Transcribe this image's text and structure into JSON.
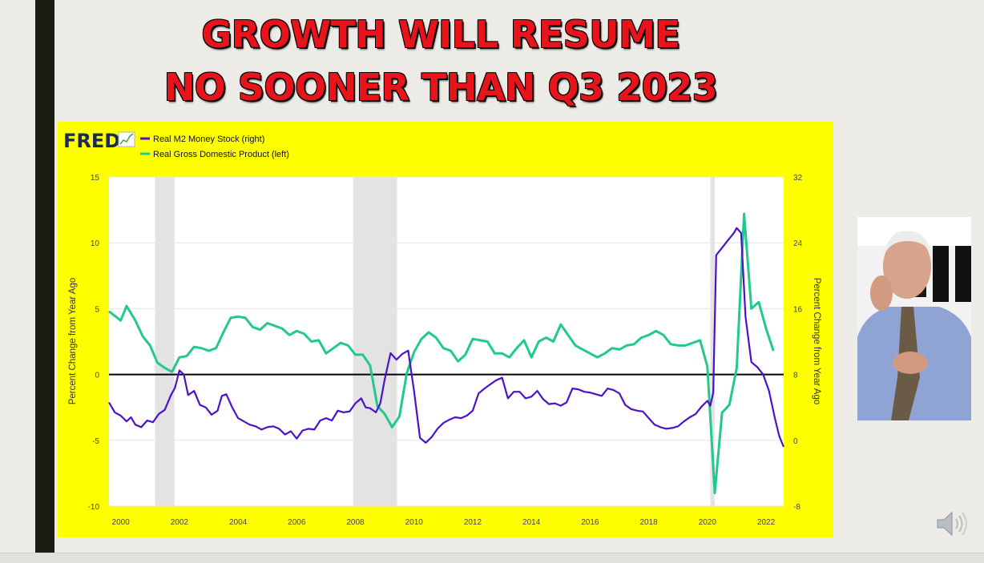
{
  "slide": {
    "title_line1": "GROWTH WILL RESUME",
    "title_line2": "NO SOONER THAN Q3 2023"
  },
  "chart_data": {
    "type": "line",
    "source_logo": "FRED",
    "colors": {
      "m2": "#4b12c9",
      "gdp": "#22c98a",
      "panel_bg": "#ffff00",
      "recession_shade": "#e3e3e3"
    },
    "left_axis": {
      "label": "Percent Change from Year Ago",
      "ylim": [
        -10,
        15
      ],
      "ticks": [
        "15",
        "10",
        "5",
        "0",
        "-5",
        "-10"
      ]
    },
    "right_axis": {
      "label": "Percent Change from Year Ago",
      "ylim": [
        -8,
        32
      ],
      "ticks": [
        "32",
        "24",
        "16",
        "8",
        "0",
        "-8"
      ]
    },
    "x_ticks": [
      "2000",
      "2002",
      "2004",
      "2006",
      "2008",
      "2010",
      "2012",
      "2014",
      "2016",
      "2018",
      "2020",
      "2022"
    ],
    "xlim": [
      1999.6,
      2022.6
    ],
    "recessions": [
      [
        2001.17,
        2001.83
      ],
      [
        2007.92,
        2009.42
      ],
      [
        2020.1,
        2020.25
      ]
    ],
    "legend": [
      "Real M2 Money Stock (right)",
      "Real Gross Domestic Product (left)"
    ],
    "series": [
      {
        "name": "Real M2 Money Stock (right)",
        "axis": "right",
        "points": [
          [
            1999.6,
            4.6
          ],
          [
            1999.8,
            3.4
          ],
          [
            2000.0,
            3.0
          ],
          [
            2000.2,
            2.3
          ],
          [
            2000.35,
            2.8
          ],
          [
            2000.5,
            1.9
          ],
          [
            2000.7,
            1.6
          ],
          [
            2000.9,
            2.4
          ],
          [
            2001.1,
            2.2
          ],
          [
            2001.3,
            3.2
          ],
          [
            2001.5,
            3.7
          ],
          [
            2001.7,
            5.4
          ],
          [
            2001.85,
            6.4
          ],
          [
            2002.0,
            8.5
          ],
          [
            2002.15,
            8.0
          ],
          [
            2002.3,
            5.5
          ],
          [
            2002.5,
            6.0
          ],
          [
            2002.7,
            4.3
          ],
          [
            2002.9,
            4.0
          ],
          [
            2003.1,
            3.1
          ],
          [
            2003.3,
            3.6
          ],
          [
            2003.45,
            5.4
          ],
          [
            2003.6,
            5.6
          ],
          [
            2003.8,
            4.0
          ],
          [
            2004.0,
            2.7
          ],
          [
            2004.2,
            2.3
          ],
          [
            2004.4,
            1.9
          ],
          [
            2004.6,
            1.7
          ],
          [
            2004.8,
            1.3
          ],
          [
            2005.0,
            1.6
          ],
          [
            2005.2,
            1.7
          ],
          [
            2005.4,
            1.4
          ],
          [
            2005.6,
            0.7
          ],
          [
            2005.8,
            1.1
          ],
          [
            2006.0,
            0.2
          ],
          [
            2006.2,
            1.2
          ],
          [
            2006.4,
            1.4
          ],
          [
            2006.6,
            1.3
          ],
          [
            2006.8,
            2.4
          ],
          [
            2007.0,
            2.7
          ],
          [
            2007.2,
            2.4
          ],
          [
            2007.4,
            3.6
          ],
          [
            2007.6,
            3.4
          ],
          [
            2007.8,
            3.5
          ],
          [
            2008.0,
            4.5
          ],
          [
            2008.2,
            5.1
          ],
          [
            2008.35,
            4.0
          ],
          [
            2008.5,
            3.9
          ],
          [
            2008.7,
            3.4
          ],
          [
            2008.85,
            4.5
          ],
          [
            2009.0,
            7.4
          ],
          [
            2009.2,
            10.6
          ],
          [
            2009.4,
            9.8
          ],
          [
            2009.6,
            10.5
          ],
          [
            2009.8,
            10.9
          ],
          [
            2010.0,
            6.0
          ],
          [
            2010.2,
            0.3
          ],
          [
            2010.4,
            -0.3
          ],
          [
            2010.6,
            0.4
          ],
          [
            2010.8,
            1.4
          ],
          [
            2011.0,
            2.1
          ],
          [
            2011.2,
            2.5
          ],
          [
            2011.4,
            2.8
          ],
          [
            2011.6,
            2.7
          ],
          [
            2011.8,
            3.0
          ],
          [
            2012.0,
            3.6
          ],
          [
            2012.2,
            5.7
          ],
          [
            2012.4,
            6.3
          ],
          [
            2012.6,
            6.8
          ],
          [
            2012.8,
            7.3
          ],
          [
            2013.0,
            7.6
          ],
          [
            2013.2,
            5.1
          ],
          [
            2013.4,
            5.9
          ],
          [
            2013.6,
            5.9
          ],
          [
            2013.8,
            5.1
          ],
          [
            2014.0,
            5.3
          ],
          [
            2014.2,
            6.0
          ],
          [
            2014.4,
            5.0
          ],
          [
            2014.6,
            4.4
          ],
          [
            2014.8,
            4.5
          ],
          [
            2015.0,
            4.2
          ],
          [
            2015.2,
            4.6
          ],
          [
            2015.4,
            6.3
          ],
          [
            2015.6,
            6.2
          ],
          [
            2015.8,
            5.9
          ],
          [
            2016.0,
            5.8
          ],
          [
            2016.2,
            5.6
          ],
          [
            2016.4,
            5.4
          ],
          [
            2016.6,
            6.3
          ],
          [
            2016.8,
            6.1
          ],
          [
            2017.0,
            5.7
          ],
          [
            2017.2,
            4.3
          ],
          [
            2017.4,
            3.8
          ],
          [
            2017.6,
            3.6
          ],
          [
            2017.8,
            3.5
          ],
          [
            2018.0,
            2.7
          ],
          [
            2018.2,
            1.9
          ],
          [
            2018.4,
            1.6
          ],
          [
            2018.6,
            1.4
          ],
          [
            2018.8,
            1.5
          ],
          [
            2019.0,
            1.7
          ],
          [
            2019.2,
            2.3
          ],
          [
            2019.4,
            2.8
          ],
          [
            2019.6,
            3.2
          ],
          [
            2019.8,
            4.1
          ],
          [
            2020.0,
            4.8
          ],
          [
            2020.1,
            4.2
          ],
          [
            2020.2,
            5.8
          ],
          [
            2020.3,
            22.5
          ],
          [
            2020.5,
            23.4
          ],
          [
            2020.7,
            24.3
          ],
          [
            2020.9,
            25.2
          ],
          [
            2021.0,
            25.8
          ],
          [
            2021.15,
            25.2
          ],
          [
            2021.3,
            15.0
          ],
          [
            2021.5,
            9.5
          ],
          [
            2021.7,
            8.9
          ],
          [
            2021.9,
            8.0
          ],
          [
            2022.1,
            6.0
          ],
          [
            2022.3,
            2.7
          ],
          [
            2022.45,
            0.5
          ],
          [
            2022.6,
            -0.8
          ]
        ]
      },
      {
        "name": "Real Gross Domestic Product (left)",
        "axis": "left",
        "points": [
          [
            1999.6,
            4.8
          ],
          [
            2000.0,
            4.1
          ],
          [
            2000.2,
            5.2
          ],
          [
            2000.5,
            4.1
          ],
          [
            2000.75,
            2.9
          ],
          [
            2001.0,
            2.2
          ],
          [
            2001.25,
            0.9
          ],
          [
            2001.5,
            0.5
          ],
          [
            2001.75,
            0.2
          ],
          [
            2002.0,
            1.3
          ],
          [
            2002.25,
            1.4
          ],
          [
            2002.5,
            2.1
          ],
          [
            2002.75,
            2.0
          ],
          [
            2003.0,
            1.8
          ],
          [
            2003.25,
            2.0
          ],
          [
            2003.5,
            3.2
          ],
          [
            2003.75,
            4.3
          ],
          [
            2004.0,
            4.4
          ],
          [
            2004.25,
            4.3
          ],
          [
            2004.5,
            3.6
          ],
          [
            2004.75,
            3.4
          ],
          [
            2005.0,
            3.9
          ],
          [
            2005.25,
            3.7
          ],
          [
            2005.5,
            3.5
          ],
          [
            2005.75,
            3.0
          ],
          [
            2006.0,
            3.3
          ],
          [
            2006.25,
            3.1
          ],
          [
            2006.5,
            2.5
          ],
          [
            2006.75,
            2.6
          ],
          [
            2007.0,
            1.6
          ],
          [
            2007.25,
            2.0
          ],
          [
            2007.5,
            2.4
          ],
          [
            2007.75,
            2.2
          ],
          [
            2008.0,
            1.5
          ],
          [
            2008.25,
            1.5
          ],
          [
            2008.5,
            0.7
          ],
          [
            2008.75,
            -2.4
          ],
          [
            2009.0,
            -3.0
          ],
          [
            2009.25,
            -4.0
          ],
          [
            2009.5,
            -3.2
          ],
          [
            2009.75,
            0.1
          ],
          [
            2010.0,
            1.7
          ],
          [
            2010.25,
            2.7
          ],
          [
            2010.5,
            3.2
          ],
          [
            2010.75,
            2.8
          ],
          [
            2011.0,
            2.0
          ],
          [
            2011.25,
            1.8
          ],
          [
            2011.5,
            1.0
          ],
          [
            2011.75,
            1.5
          ],
          [
            2012.0,
            2.7
          ],
          [
            2012.25,
            2.6
          ],
          [
            2012.5,
            2.5
          ],
          [
            2012.75,
            1.6
          ],
          [
            2013.0,
            1.6
          ],
          [
            2013.25,
            1.3
          ],
          [
            2013.5,
            2.0
          ],
          [
            2013.75,
            2.6
          ],
          [
            2014.0,
            1.3
          ],
          [
            2014.25,
            2.5
          ],
          [
            2014.5,
            2.8
          ],
          [
            2014.75,
            2.5
          ],
          [
            2015.0,
            3.8
          ],
          [
            2015.25,
            3.0
          ],
          [
            2015.5,
            2.2
          ],
          [
            2015.75,
            1.9
          ],
          [
            2016.0,
            1.6
          ],
          [
            2016.25,
            1.3
          ],
          [
            2016.5,
            1.6
          ],
          [
            2016.75,
            2.0
          ],
          [
            2017.0,
            1.9
          ],
          [
            2017.25,
            2.2
          ],
          [
            2017.5,
            2.3
          ],
          [
            2017.75,
            2.8
          ],
          [
            2018.0,
            3.0
          ],
          [
            2018.25,
            3.3
          ],
          [
            2018.5,
            3.0
          ],
          [
            2018.75,
            2.3
          ],
          [
            2019.0,
            2.2
          ],
          [
            2019.25,
            2.2
          ],
          [
            2019.5,
            2.4
          ],
          [
            2019.75,
            2.6
          ],
          [
            2020.0,
            0.6
          ],
          [
            2020.25,
            -9.0
          ],
          [
            2020.5,
            -2.9
          ],
          [
            2020.75,
            -2.3
          ],
          [
            2021.0,
            0.5
          ],
          [
            2021.25,
            12.2
          ],
          [
            2021.5,
            5.0
          ],
          [
            2021.75,
            5.5
          ],
          [
            2022.0,
            3.5
          ],
          [
            2022.25,
            1.8
          ]
        ]
      }
    ]
  },
  "photo": {
    "description_icon": "presenter-photo"
  },
  "audio": {
    "icon": "speaker-icon"
  }
}
